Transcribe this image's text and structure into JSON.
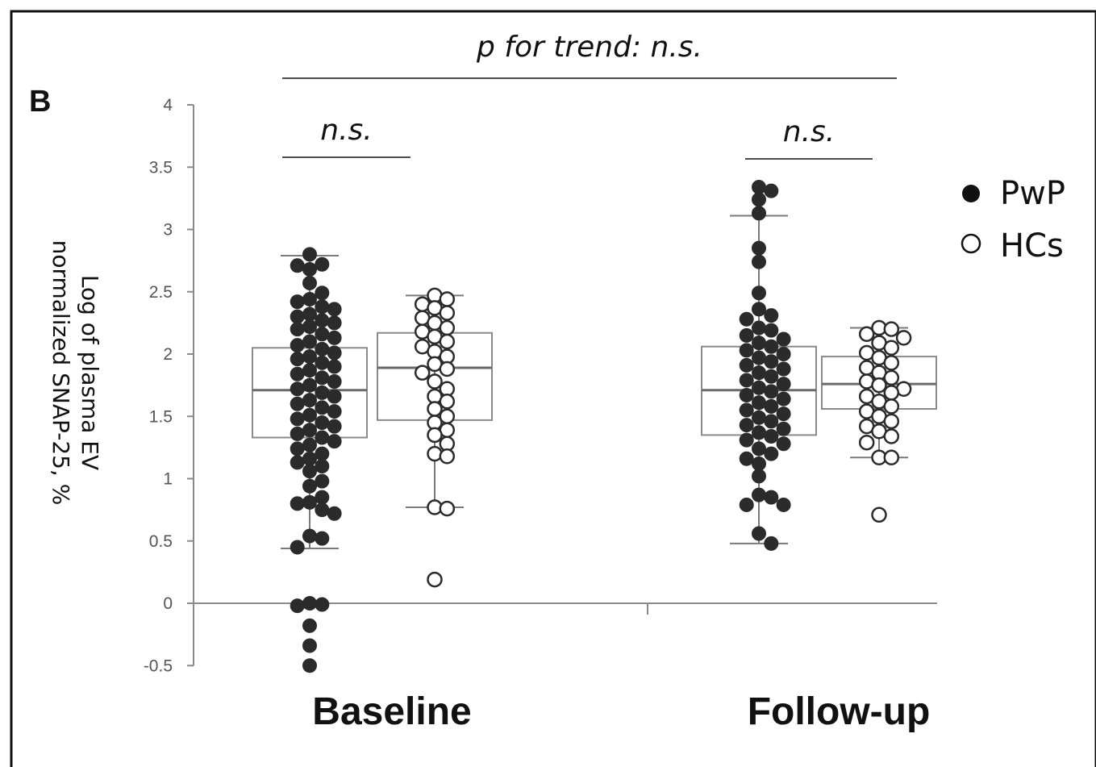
{
  "chart_data": {
    "type": "box",
    "panel_label": "B",
    "ylabel_lines": [
      "Log of plasma EV",
      "normalized SNAP-25, %"
    ],
    "ylim": [
      -0.5,
      4
    ],
    "yticks": [
      4,
      3.5,
      3,
      2.5,
      2,
      1.5,
      1,
      0.5,
      0,
      -0.5
    ],
    "ytick_labels": [
      "4",
      "3.5",
      "3",
      "2.5",
      "2",
      "1.5",
      "1",
      "0.5",
      "0",
      "-0.5"
    ],
    "grid": false,
    "legend_position": "right",
    "categories": [
      "Baseline",
      "Follow-up"
    ],
    "series": [
      {
        "name": "PwP",
        "marker": "filled",
        "color": "#2b2b2b",
        "boxes": [
          {
            "category": "Baseline",
            "whisker_low": 0.44,
            "q1": 1.33,
            "median": 1.71,
            "q3": 2.05,
            "whisker_high": 2.79,
            "points": [
              2.8,
              2.72,
              2.71,
              2.68,
              2.57,
              2.49,
              2.44,
              2.42,
              2.38,
              2.36,
              2.32,
              2.3,
              2.27,
              2.25,
              2.22,
              2.2,
              2.16,
              2.13,
              2.1,
              2.07,
              2.04,
              2.01,
              1.98,
              1.96,
              1.93,
              1.9,
              1.87,
              1.84,
              1.81,
              1.78,
              1.75,
              1.72,
              1.69,
              1.66,
              1.63,
              1.6,
              1.57,
              1.54,
              1.51,
              1.48,
              1.45,
              1.42,
              1.39,
              1.36,
              1.33,
              1.3,
              1.27,
              1.24,
              1.2,
              1.16,
              1.13,
              1.1,
              1.06,
              0.98,
              0.94,
              0.85,
              0.81,
              0.8,
              0.75,
              0.72,
              0.54,
              0.52,
              0.45,
              0.0,
              -0.01,
              -0.02,
              -0.18,
              -0.34,
              -0.5
            ]
          },
          {
            "category": "Follow-up",
            "whisker_low": 0.48,
            "q1": 1.35,
            "median": 1.71,
            "q3": 2.06,
            "whisker_high": 3.11,
            "points": [
              3.34,
              3.31,
              3.24,
              3.13,
              2.85,
              2.74,
              2.49,
              2.36,
              2.31,
              2.28,
              2.21,
              2.19,
              2.15,
              2.12,
              2.09,
              2.06,
              2.03,
              2.0,
              1.97,
              1.94,
              1.91,
              1.88,
              1.85,
              1.82,
              1.79,
              1.76,
              1.73,
              1.7,
              1.67,
              1.64,
              1.61,
              1.58,
              1.55,
              1.52,
              1.49,
              1.46,
              1.43,
              1.4,
              1.37,
              1.34,
              1.31,
              1.28,
              1.24,
              1.2,
              1.16,
              1.12,
              1.02,
              0.87,
              0.85,
              0.79,
              0.79,
              0.56,
              0.48
            ]
          }
        ]
      },
      {
        "name": "HCs",
        "marker": "open",
        "color": "#2b2b2b",
        "boxes": [
          {
            "category": "Baseline",
            "whisker_low": 0.77,
            "q1": 1.47,
            "median": 1.89,
            "q3": 2.17,
            "whisker_high": 2.47,
            "points": [
              2.47,
              2.44,
              2.4,
              2.37,
              2.33,
              2.29,
              2.25,
              2.21,
              2.18,
              2.14,
              2.1,
              2.06,
              2.02,
              1.98,
              1.92,
              1.88,
              1.85,
              1.78,
              1.72,
              1.66,
              1.62,
              1.56,
              1.5,
              1.45,
              1.39,
              1.35,
              1.28,
              1.2,
              1.18,
              0.77,
              0.76,
              0.19
            ]
          },
          {
            "category": "Follow-up",
            "whisker_low": 1.17,
            "q1": 1.56,
            "median": 1.76,
            "q3": 1.98,
            "whisker_high": 2.21,
            "points": [
              2.21,
              2.2,
              2.16,
              2.13,
              2.09,
              2.05,
              2.01,
              1.97,
              1.93,
              1.89,
              1.85,
              1.81,
              1.78,
              1.75,
              1.72,
              1.69,
              1.66,
              1.62,
              1.58,
              1.54,
              1.5,
              1.46,
              1.42,
              1.38,
              1.34,
              1.29,
              1.17,
              1.17,
              0.71
            ]
          }
        ]
      }
    ],
    "annotations": [
      {
        "text": "p for trend: n.s.",
        "spans": "all"
      },
      {
        "text": "n.s.",
        "spans": "Baseline"
      },
      {
        "text": "n.s.",
        "spans": "Follow-up"
      }
    ]
  }
}
